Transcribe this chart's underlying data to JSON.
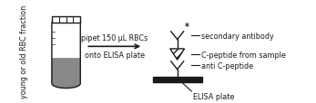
{
  "bg_color": "#ffffff",
  "tube_label": "young or old RBC fraction",
  "arrow_text1": "pipet 150 μL RBCs",
  "arrow_text2": "onto ELISA plate",
  "label_secondary": "secondary antibody",
  "label_cpeptide": "C-peptide from sample",
  "label_anti": "anti C-peptide",
  "label_elisa": "ELISA plate",
  "label_font_size": 5.8,
  "line_color": "#1a1a1a",
  "tube_dark": "#888888",
  "tube_light": "#f0f0f0"
}
